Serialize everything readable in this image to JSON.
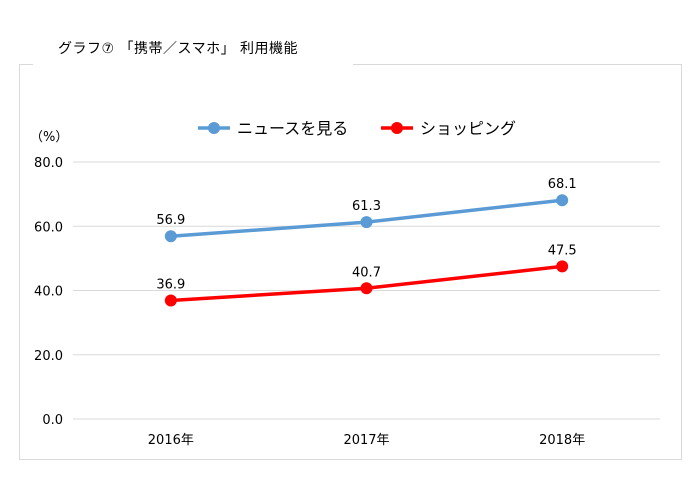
{
  "page_title": "グラフ⑦ 「携帯／スマホ」 利用機能",
  "chart_data": {
    "type": "line",
    "title": "グラフ⑦ 「携帯／スマホ」 利用機能",
    "ylabel": "（%）",
    "xlabel": "",
    "categories": [
      "2016年",
      "2017年",
      "2018年"
    ],
    "ylim": [
      0,
      80
    ],
    "yticks": [
      "0.0",
      "20.0",
      "40.0",
      "60.0",
      "80.0"
    ],
    "grid": true,
    "legend_position": "top-center",
    "series": [
      {
        "name": "ニュースを見る",
        "color": "#5b9bd5",
        "values": [
          56.9,
          61.3,
          68.1
        ],
        "labels": [
          "56.9",
          "61.3",
          "68.1"
        ]
      },
      {
        "name": "ショッピング",
        "color": "#ff0000",
        "values": [
          36.9,
          40.7,
          47.5
        ],
        "labels": [
          "36.9",
          "40.7",
          "47.5"
        ]
      }
    ]
  }
}
